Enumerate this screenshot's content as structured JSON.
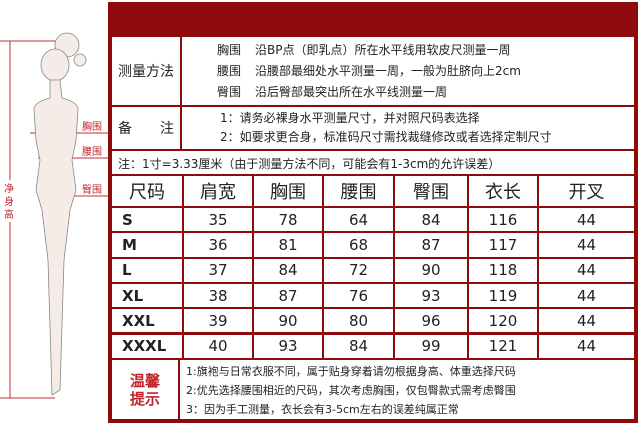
{
  "figure": {
    "height_label": "净身高",
    "chest_label": "胸围",
    "waist_label": "腰围",
    "hip_label": "臀围"
  },
  "measure": {
    "label": "测量方法",
    "items": [
      {
        "name": "胸围",
        "text": "沿BP点（即乳点）所在水平线用软皮尺测量一周"
      },
      {
        "name": "腰围",
        "text": "沿腰部最细处水平测量一周，一般为肚脐向上2cm"
      },
      {
        "name": "臀围",
        "text": "沿后臀部最突出所在水平线测量一周"
      }
    ]
  },
  "remarks": {
    "label": "备　　注",
    "lines": [
      "1：请务必裸身水平测量尺寸，并对照尺码表选择",
      "2：如要求更合身，标准码尺寸需找裁缝修改或者选择定制尺寸"
    ]
  },
  "note": "注：1寸=3.33厘米（由于测量方法不同，可能会有1-3cm的允许误差）",
  "table": {
    "headers": [
      "尺码",
      "肩宽",
      "胸围",
      "腰围",
      "臀围",
      "衣长",
      "开叉"
    ],
    "rows": [
      [
        "S",
        "35",
        "78",
        "64",
        "84",
        "116",
        "44"
      ],
      [
        "M",
        "36",
        "81",
        "68",
        "87",
        "117",
        "44"
      ],
      [
        "L",
        "37",
        "84",
        "72",
        "90",
        "118",
        "44"
      ],
      [
        "XL",
        "38",
        "87",
        "76",
        "93",
        "119",
        "44"
      ],
      [
        "XXL",
        "39",
        "90",
        "80",
        "96",
        "120",
        "44"
      ],
      [
        "XXXL",
        "40",
        "93",
        "84",
        "99",
        "121",
        "44"
      ]
    ]
  },
  "tips": {
    "label": "温馨提示",
    "lines": [
      "1:旗袍与日常衣服不同，属于贴身穿着请勿根据身高、体重选择尺码",
      "2:优先选择腰围相近的尺码，其次考虑胸围，仅包臀款式需考虑臀围",
      "3：因为手工测量，衣长会有3-5cm左右的误差纯属正常"
    ]
  },
  "colors": {
    "frame": "#8f0a0a",
    "accent": "#c0262b"
  }
}
